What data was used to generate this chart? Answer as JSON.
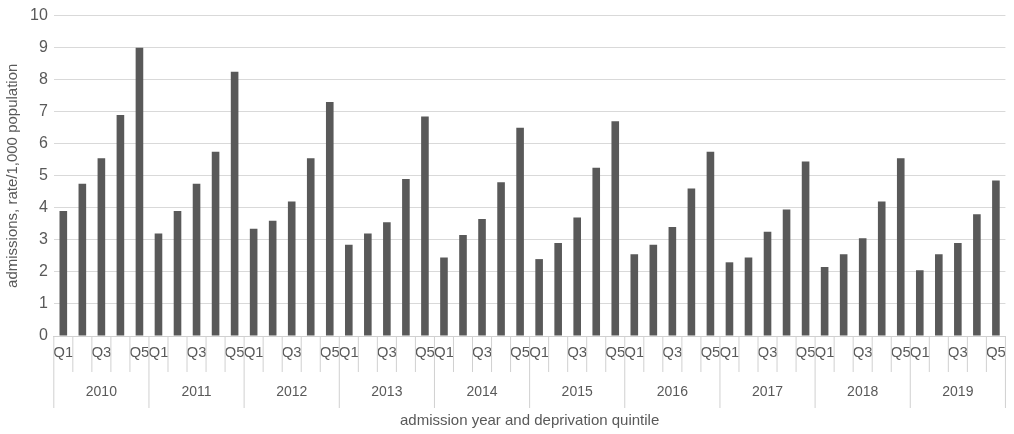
{
  "chart_data": {
    "type": "bar",
    "xlabel": "admission year and deprivation quintile",
    "ylabel": "admissions, rate/1,000 population",
    "categories": [
      "Q1",
      null,
      "Q3",
      null,
      "Q5",
      "Q1",
      null,
      "Q3",
      null,
      "Q5",
      "Q1",
      null,
      "Q3",
      null,
      "Q5",
      "Q1",
      null,
      "Q3",
      null,
      "Q5",
      "Q1",
      null,
      "Q3",
      null,
      "Q5",
      "Q1",
      null,
      "Q3",
      null,
      "Q5",
      "Q1",
      null,
      "Q3",
      null,
      "Q5",
      "Q1",
      null,
      "Q3",
      null,
      "Q5",
      "Q1",
      null,
      "Q3",
      null,
      "Q5",
      "Q1",
      null,
      "Q3",
      null,
      "Q5"
    ],
    "values": [
      3.9,
      4.75,
      5.55,
      6.9,
      9.0,
      3.2,
      3.9,
      4.75,
      5.75,
      8.25,
      3.35,
      3.6,
      4.2,
      5.55,
      7.3,
      2.85,
      3.2,
      3.55,
      4.9,
      6.85,
      2.45,
      3.15,
      3.65,
      4.8,
      6.5,
      2.4,
      2.9,
      3.7,
      5.25,
      6.7,
      2.55,
      2.85,
      3.4,
      4.6,
      5.75,
      2.3,
      2.45,
      3.25,
      3.95,
      5.45,
      2.15,
      2.55,
      3.05,
      4.2,
      5.55,
      2.05,
      2.55,
      2.9,
      3.8,
      4.85
    ],
    "color": "#595959",
    "annotations": [
      "2010",
      "2011",
      "2012",
      "2013",
      "2014",
      "2015",
      "2016",
      "2017",
      "2018",
      "2019"
    ],
    "ylim": [
      0,
      10
    ],
    "yticks": [
      0,
      1,
      2,
      3,
      4,
      5,
      6,
      7,
      8,
      9,
      10
    ],
    "grid": "y",
    "legend": false
  }
}
